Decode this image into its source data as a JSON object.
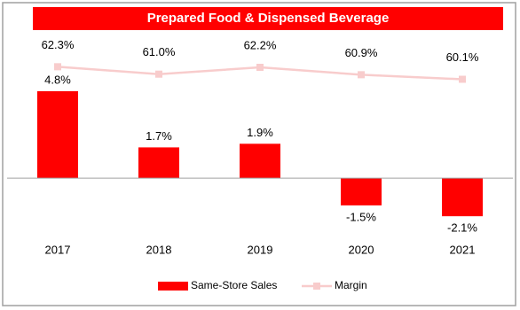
{
  "chart_data": {
    "type": "bar_line",
    "title": "Prepared Food & Dispensed Beverage",
    "categories": [
      "2017",
      "2018",
      "2019",
      "2020",
      "2021"
    ],
    "series": [
      {
        "name": "Same-Store Sales",
        "type": "bar",
        "color": "#ff0000",
        "values": [
          4.8,
          1.7,
          1.9,
          -1.5,
          -2.1
        ],
        "value_labels": [
          "4.8%",
          "1.7%",
          "1.9%",
          "-1.5%",
          "-2.1%"
        ]
      },
      {
        "name": "Margin",
        "type": "line",
        "axis": "y2",
        "color": "#f8cccc",
        "values": [
          62.3,
          61.0,
          62.2,
          60.9,
          60.1
        ],
        "value_labels": [
          "62.3%",
          "61.0%",
          "62.2%",
          "60.9%",
          "60.1%"
        ]
      }
    ],
    "ylim": [
      -4,
      7
    ],
    "y2lim": [
      30,
      65
    ]
  }
}
